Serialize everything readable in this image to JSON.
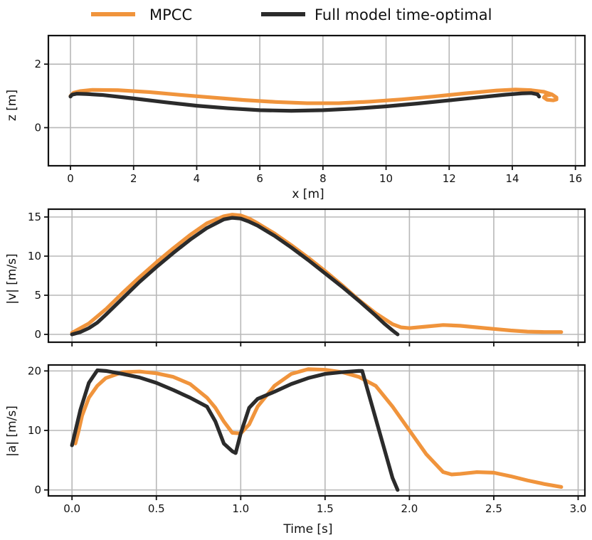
{
  "legend": [
    {
      "name": "MPCC",
      "color": "#f0943c"
    },
    {
      "name": "Full model time-optimal",
      "color": "#2b2b2b"
    }
  ],
  "chart_data": [
    {
      "type": "line",
      "xlabel": "x [m]",
      "ylabel": "z [m]",
      "xlim": [
        -0.7,
        16.3
      ],
      "ylim": [
        -1.2,
        2.9
      ],
      "xticks": [
        0,
        2,
        4,
        6,
        8,
        10,
        12,
        14,
        16
      ],
      "yticks": [
        0,
        2
      ],
      "grid": true,
      "series": [
        {
          "name": "MPCC",
          "color": "#f0943c",
          "x": [
            0.0,
            0.1,
            0.3,
            0.7,
            1.5,
            2.5,
            3.5,
            4.5,
            5.5,
            6.5,
            7.5,
            8.5,
            9.5,
            10.5,
            11.5,
            12.5,
            13.5,
            14.1,
            14.6,
            15.0,
            15.25,
            15.4,
            15.4,
            15.3,
            15.1,
            15.0,
            15.05,
            15.2
          ],
          "y": [
            1.0,
            1.1,
            1.15,
            1.19,
            1.18,
            1.12,
            1.03,
            0.95,
            0.87,
            0.81,
            0.77,
            0.77,
            0.82,
            0.89,
            0.98,
            1.08,
            1.17,
            1.2,
            1.18,
            1.13,
            1.05,
            0.95,
            0.89,
            0.86,
            0.88,
            0.95,
            1.01,
            1.03
          ]
        },
        {
          "name": "Full model time-optimal",
          "color": "#2b2b2b",
          "x": [
            0.0,
            0.05,
            0.2,
            0.5,
            1.0,
            2.0,
            3.0,
            4.0,
            5.0,
            6.0,
            7.0,
            8.0,
            9.0,
            10.0,
            11.0,
            12.0,
            13.0,
            13.8,
            14.3,
            14.6,
            14.8,
            14.85
          ],
          "y": [
            0.98,
            1.04,
            1.07,
            1.06,
            1.03,
            0.92,
            0.8,
            0.69,
            0.61,
            0.55,
            0.53,
            0.55,
            0.6,
            0.67,
            0.76,
            0.86,
            0.96,
            1.04,
            1.08,
            1.09,
            1.05,
            0.98
          ]
        }
      ]
    },
    {
      "type": "line",
      "xlabel": "",
      "ylabel": "|v| [m/s]",
      "xlim": [
        -0.14,
        3.04
      ],
      "ylim": [
        -1.0,
        16.0
      ],
      "xticks": [
        0.0,
        0.5,
        1.0,
        1.5,
        2.0,
        2.5,
        3.0
      ],
      "yticks": [
        0,
        5,
        10,
        15
      ],
      "grid": true,
      "series": [
        {
          "name": "MPCC",
          "color": "#f0943c",
          "x": [
            0.0,
            0.1,
            0.2,
            0.3,
            0.4,
            0.5,
            0.6,
            0.7,
            0.8,
            0.9,
            0.95,
            1.0,
            1.05,
            1.1,
            1.2,
            1.3,
            1.4,
            1.5,
            1.6,
            1.7,
            1.8,
            1.9,
            1.95,
            2.0,
            2.1,
            2.2,
            2.3,
            2.4,
            2.5,
            2.6,
            2.7,
            2.8,
            2.9
          ],
          "y": [
            0.2,
            1.4,
            3.2,
            5.3,
            7.3,
            9.2,
            11.0,
            12.7,
            14.2,
            15.1,
            15.3,
            15.2,
            14.8,
            14.2,
            12.9,
            11.4,
            9.8,
            8.1,
            6.3,
            4.4,
            2.7,
            1.3,
            0.9,
            0.8,
            1.0,
            1.2,
            1.1,
            0.9,
            0.7,
            0.5,
            0.35,
            0.3,
            0.3
          ]
        },
        {
          "name": "Full model time-optimal",
          "color": "#2b2b2b",
          "x": [
            0.0,
            0.05,
            0.1,
            0.15,
            0.2,
            0.3,
            0.4,
            0.5,
            0.6,
            0.7,
            0.8,
            0.9,
            0.95,
            1.0,
            1.05,
            1.1,
            1.2,
            1.3,
            1.4,
            1.5,
            1.6,
            1.7,
            1.8,
            1.85,
            1.9,
            1.93
          ],
          "y": [
            0.0,
            0.3,
            0.8,
            1.5,
            2.5,
            4.6,
            6.7,
            8.6,
            10.4,
            12.1,
            13.6,
            14.7,
            14.9,
            14.8,
            14.4,
            13.9,
            12.6,
            11.1,
            9.5,
            7.8,
            6.1,
            4.3,
            2.4,
            1.4,
            0.5,
            0.0
          ]
        }
      ]
    },
    {
      "type": "line",
      "xlabel": "Time [s]",
      "ylabel": "|a| [m/s]",
      "xlim": [
        -0.14,
        3.04
      ],
      "ylim": [
        -1.0,
        21.0
      ],
      "xticks": [
        0.0,
        0.5,
        1.0,
        1.5,
        2.0,
        2.5,
        3.0
      ],
      "xtick_labels": [
        "0.0",
        "0.5",
        "1.0",
        "1.5",
        "2.0",
        "2.5",
        "3.0"
      ],
      "yticks": [
        0,
        10,
        20
      ],
      "grid": true,
      "series": [
        {
          "name": "MPCC",
          "color": "#f0943c",
          "x": [
            0.02,
            0.04,
            0.06,
            0.1,
            0.15,
            0.2,
            0.3,
            0.4,
            0.5,
            0.6,
            0.7,
            0.8,
            0.85,
            0.9,
            0.95,
            1.0,
            1.05,
            1.1,
            1.2,
            1.3,
            1.4,
            1.5,
            1.6,
            1.7,
            1.8,
            1.9,
            2.0,
            2.1,
            2.2,
            2.25,
            2.3,
            2.4,
            2.5,
            2.6,
            2.7,
            2.8,
            2.9
          ],
          "y": [
            7.8,
            10.0,
            12.5,
            15.5,
            17.5,
            18.8,
            19.8,
            19.9,
            19.6,
            19.0,
            17.8,
            15.5,
            13.8,
            11.5,
            9.6,
            9.5,
            11.0,
            14.0,
            17.5,
            19.5,
            20.3,
            20.2,
            19.8,
            19.0,
            17.5,
            14.0,
            10.0,
            6.0,
            3.0,
            2.6,
            2.7,
            3.0,
            2.9,
            2.3,
            1.6,
            1.0,
            0.5
          ]
        },
        {
          "name": "Full model time-optimal",
          "color": "#2b2b2b",
          "x": [
            0.0,
            0.05,
            0.1,
            0.15,
            0.2,
            0.3,
            0.4,
            0.5,
            0.6,
            0.7,
            0.8,
            0.85,
            0.9,
            0.95,
            0.97,
            1.0,
            1.05,
            1.1,
            1.2,
            1.3,
            1.4,
            1.5,
            1.6,
            1.7,
            1.72,
            1.75,
            1.8,
            1.85,
            1.9,
            1.93
          ],
          "y": [
            7.5,
            13.5,
            18.0,
            20.1,
            20.0,
            19.5,
            18.9,
            18.0,
            16.8,
            15.5,
            14.0,
            11.5,
            7.8,
            6.5,
            6.2,
            9.5,
            13.8,
            15.3,
            16.5,
            17.8,
            18.8,
            19.5,
            19.8,
            20.0,
            20.0,
            17.0,
            12.0,
            7.0,
            2.0,
            0.0
          ]
        }
      ]
    }
  ]
}
